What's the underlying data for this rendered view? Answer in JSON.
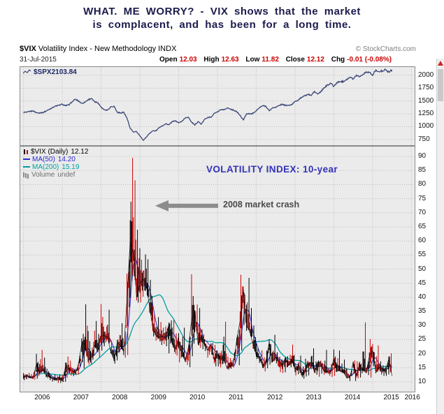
{
  "page": {
    "title_line1": "WHAT. ME WORRY? - VIX shows that the market",
    "title_line2": "is complacent, and has been for a long time."
  },
  "header": {
    "symbol": "$VIX",
    "description": "Volatility Index - New Methodology INDX",
    "source": "© StockCharts.com",
    "date": "31-Jul-2015",
    "quote": {
      "open_label": "Open",
      "open": "12.03",
      "high_label": "High",
      "high": "12.63",
      "low_label": "Low",
      "low": "11.82",
      "close_label": "Close",
      "close": "12.12",
      "chg_label": "Chg",
      "chg": "-0.01 (-0.08%)"
    }
  },
  "legend": {
    "spx": {
      "label": "$SPX",
      "value": "2103.84"
    },
    "vix": {
      "label": "$VIX (Daily)",
      "value": "12.12"
    },
    "ma50": {
      "label": "MA(50)",
      "value": "14.20"
    },
    "ma200": {
      "label": "MA(200)",
      "value": "15.19"
    },
    "volume": {
      "label": "Volume",
      "value": "undef"
    }
  },
  "annotations": {
    "volatility_label": "VOLATILITY INDEX: 10-year",
    "crash_label": "2008 market crash"
  },
  "colors": {
    "spx_line": "#3b4676",
    "vix_bar": "#000000",
    "vix_bar_down": "#cc0000",
    "ma50": "#2b2bd0",
    "ma200": "#00a0a0",
    "grid": "#bdbdbd",
    "panel_bg": "#ebebeb",
    "annotation_blue": "#3333b8",
    "annotation_grey": "#4a4a4a",
    "arrow": "#8c8c8c",
    "quote_value": "#cc0000",
    "title_text": "#1b1b4d"
  },
  "chart_data": [
    {
      "id": "spx",
      "type": "line",
      "title": "$SPX overlay panel",
      "symbol": "$SPX",
      "last_value": 2103.84,
      "frequency": "monthly",
      "x_start": "2006-01",
      "x_end": "2015-07",
      "x_year_ticks": [
        2006,
        2007,
        2008,
        2009,
        2010,
        2011,
        2012,
        2013,
        2014,
        2015,
        2016
      ],
      "y_ticks": [
        2000,
        1750,
        1500,
        1250,
        1000,
        750
      ],
      "ylim": [
        640,
        2160
      ],
      "grid": true,
      "values": [
        1280,
        1281,
        1295,
        1311,
        1270,
        1270,
        1277,
        1304,
        1336,
        1378,
        1401,
        1418,
        1438,
        1407,
        1421,
        1482,
        1531,
        1503,
        1455,
        1474,
        1527,
        1549,
        1481,
        1468,
        1378,
        1331,
        1323,
        1386,
        1400,
        1280,
        1267,
        1283,
        1166,
        969,
        896,
        903,
        826,
        735,
        798,
        873,
        919,
        919,
        987,
        1021,
        1057,
        1036,
        1096,
        1115,
        1074,
        1104,
        1169,
        1187,
        1089,
        1031,
        1102,
        1049,
        1141,
        1183,
        1181,
        1258,
        1286,
        1327,
        1326,
        1364,
        1345,
        1321,
        1292,
        1219,
        1131,
        1253,
        1247,
        1258,
        1312,
        1366,
        1408,
        1398,
        1310,
        1362,
        1379,
        1407,
        1441,
        1412,
        1416,
        1426,
        1498,
        1515,
        1569,
        1598,
        1631,
        1606,
        1686,
        1633,
        1682,
        1757,
        1806,
        1848,
        1783,
        1859,
        1872,
        1884,
        1924,
        1960,
        1931,
        2003,
        1972,
        2018,
        2068,
        2059,
        1995,
        2105,
        2068,
        2086,
        2107,
        2063,
        2104
      ]
    },
    {
      "id": "vix",
      "type": "ohlc-bar",
      "title": "VOLATILITY INDEX: 10-year",
      "symbol": "$VIX",
      "last_value": 12.12,
      "ma50_value": 14.2,
      "ma200_value": 15.19,
      "volume": "undef",
      "frequency": "monthly",
      "x_start": "2006-01",
      "x_end": "2015-07",
      "x_year_ticks": [
        2006,
        2007,
        2008,
        2009,
        2010,
        2011,
        2012,
        2013,
        2014,
        2015,
        2016
      ],
      "y_ticks": [
        90,
        85,
        80,
        75,
        70,
        65,
        60,
        55,
        50,
        45,
        40,
        35,
        30,
        25,
        20,
        15,
        10
      ],
      "ylim": [
        6.5,
        93.5
      ],
      "grid": true,
      "close": [
        11.6,
        12.3,
        11.4,
        11.6,
        16.4,
        13.1,
        14.3,
        12.3,
        11.9,
        11.1,
        10.9,
        11.6,
        10.4,
        15.4,
        14.6,
        14.2,
        13.1,
        16.2,
        23.5,
        23.4,
        18.0,
        18.5,
        22.9,
        22.5,
        26.2,
        26.5,
        25.6,
        20.8,
        17.8,
        23.9,
        22.9,
        20.7,
        39.4,
        59.9,
        55.3,
        40.0,
        44.8,
        46.4,
        44.1,
        36.5,
        28.9,
        26.4,
        25.9,
        26.0,
        25.6,
        30.7,
        24.5,
        21.7,
        24.6,
        19.5,
        17.6,
        22.1,
        32.1,
        34.5,
        23.5,
        26.1,
        23.7,
        21.2,
        23.5,
        17.8,
        19.5,
        18.4,
        17.7,
        14.8,
        15.5,
        16.5,
        25.3,
        31.6,
        43.0,
        30.0,
        27.8,
        23.4,
        19.4,
        18.4,
        15.5,
        17.2,
        24.1,
        17.1,
        18.9,
        17.5,
        15.7,
        18.6,
        15.9,
        18.0,
        14.3,
        15.5,
        12.7,
        13.5,
        16.3,
        16.9,
        13.5,
        17.0,
        16.6,
        13.8,
        13.7,
        13.7,
        18.4,
        14.0,
        13.9,
        13.4,
        11.4,
        11.6,
        17.0,
        12.0,
        16.3,
        14.0,
        13.3,
        19.2,
        21.0,
        13.3,
        15.3,
        14.6,
        13.8,
        18.2,
        12.1
      ],
      "high": [
        13.1,
        13.2,
        12.8,
        13.4,
        19.9,
        21.3,
        18.6,
        14.6,
        13.2,
        12.6,
        12.2,
        12.6,
        12.5,
        19.0,
        17.5,
        14.9,
        14.6,
        18.1,
        27.0,
        37.5,
        28.0,
        24.2,
        31.6,
        27.0,
        37.6,
        29.6,
        35.6,
        24.6,
        21.1,
        26.6,
        30.8,
        24.4,
        48.4,
        89.5,
        81.5,
        64.0,
        57.4,
        55.2,
        53.5,
        46.2,
        37.1,
        33.0,
        31.2,
        29.2,
        29.6,
        31.8,
        32.0,
        27.2,
        27.3,
        29.2,
        20.1,
        23.2,
        48.2,
        37.4,
        36.2,
        28.6,
        25.1,
        23.1,
        23.8,
        23.1,
        21.1,
        23.2,
        31.3,
        18.9,
        18.4,
        21.6,
        25.9,
        48.0,
        43.9,
        46.9,
        36.2,
        30.0,
        23.6,
        21.2,
        18.7,
        21.1,
        25.1,
        26.7,
        20.5,
        18.9,
        17.9,
        19.1,
        19.6,
        23.2,
        16.5,
        19.3,
        15.4,
        18.2,
        17.5,
        21.9,
        17.2,
        17.6,
        17.5,
        21.3,
        14.9,
        16.4,
        21.5,
        21.1,
        16.5,
        17.9,
        14.6,
        12.9,
        17.6,
        17.3,
        17.1,
        31.1,
        16.2,
        25.2,
        23.4,
        22.9,
        17.2,
        15.9,
        15.7,
        20.1,
        20.0
      ],
      "low": [
        10.6,
        10.9,
        11.0,
        10.8,
        11.1,
        12.9,
        12.9,
        11.2,
        10.6,
        10.1,
        9.6,
        9.6,
        9.9,
        10.0,
        12.2,
        12.0,
        12.4,
        12.6,
        14.7,
        19.0,
        16.1,
        16.1,
        20.9,
        18.6,
        21.1,
        22.6,
        24.0,
        19.6,
        16.5,
        17.6,
        21.1,
        18.6,
        19.5,
        39.8,
        44.2,
        38.1,
        38.2,
        40.2,
        40.0,
        33.6,
        26.1,
        24.6,
        23.1,
        23.4,
        22.6,
        20.1,
        20.6,
        19.3,
        16.9,
        18.9,
        16.0,
        15.2,
        19.1,
        27.6,
        22.1,
        21.6,
        20.9,
        18.6,
        18.1,
        15.5,
        15.5,
        15.1,
        16.6,
        14.3,
        14.6,
        15.1,
        15.9,
        21.1,
        30.2,
        28.1,
        26.1,
        20.9,
        18.1,
        16.7,
        13.7,
        14.8,
        16.1,
        16.9,
        15.6,
        13.4,
        13.1,
        13.4,
        15.1,
        15.6,
        12.3,
        12.7,
        11.1,
        11.9,
        12.3,
        14.5,
        12.5,
        11.8,
        12.9,
        12.5,
        12.1,
        11.7,
        12.1,
        13.6,
        13.1,
        12.7,
        11.2,
        10.3,
        10.3,
        11.2,
        11.5,
        13.9,
        12.4,
        11.5,
        15.5,
        13.0,
        12.5,
        12.1,
        12.1,
        12.6,
        11.8
      ]
    }
  ]
}
